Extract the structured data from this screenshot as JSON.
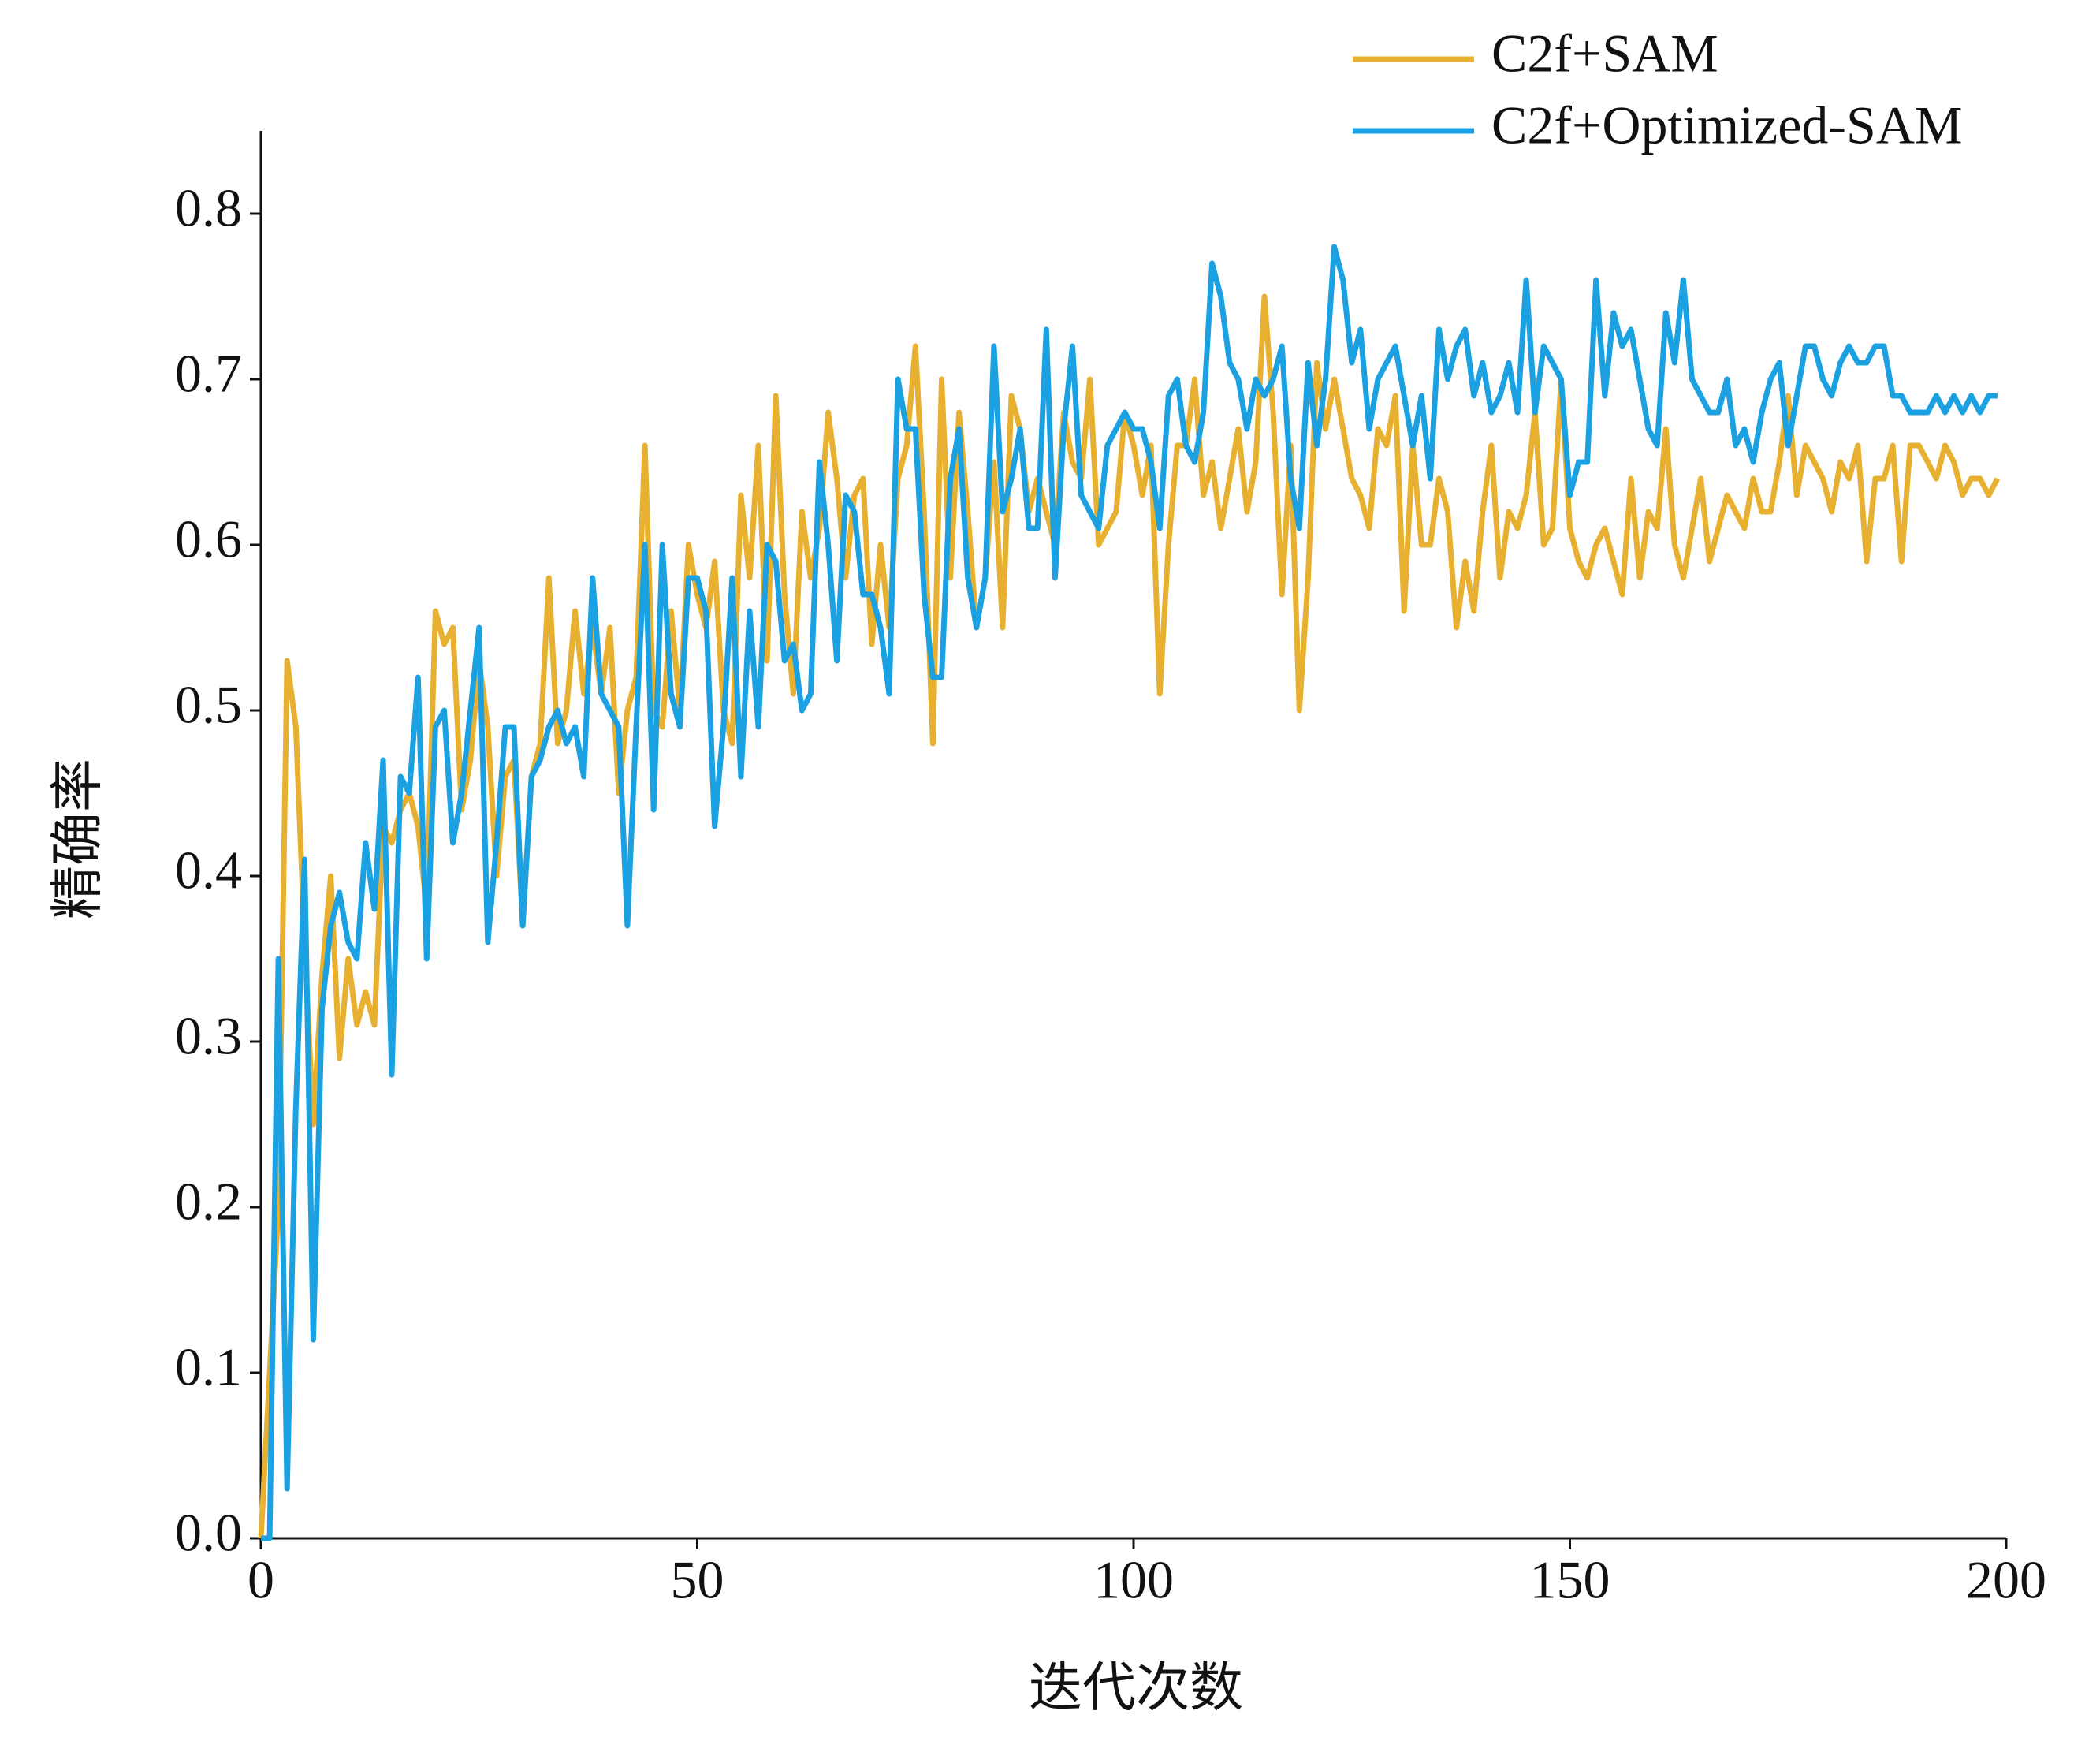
{
  "chart_data": {
    "type": "line",
    "x_label": "迭代次数",
    "y_label": "精确率",
    "x": [
      0,
      1,
      2,
      3,
      4,
      5,
      6,
      7,
      8,
      9,
      10,
      11,
      12,
      13,
      14,
      15,
      16,
      17,
      18,
      19,
      20,
      21,
      22,
      23,
      24,
      25,
      26,
      27,
      28,
      29,
      30,
      31,
      32,
      33,
      34,
      35,
      36,
      37,
      38,
      39,
      40,
      41,
      42,
      43,
      44,
      45,
      46,
      47,
      48,
      49,
      50,
      51,
      52,
      53,
      54,
      55,
      56,
      57,
      58,
      59,
      60,
      61,
      62,
      63,
      64,
      65,
      66,
      67,
      68,
      69,
      70,
      71,
      72,
      73,
      74,
      75,
      76,
      77,
      78,
      79,
      80,
      81,
      82,
      83,
      84,
      85,
      86,
      87,
      88,
      89,
      90,
      91,
      92,
      93,
      94,
      95,
      96,
      97,
      98,
      99,
      100,
      101,
      102,
      103,
      104,
      105,
      106,
      107,
      108,
      109,
      110,
      111,
      112,
      113,
      114,
      115,
      116,
      117,
      118,
      119,
      120,
      121,
      122,
      123,
      124,
      125,
      126,
      127,
      128,
      129,
      130,
      131,
      132,
      133,
      134,
      135,
      136,
      137,
      138,
      139,
      140,
      141,
      142,
      143,
      144,
      145,
      146,
      147,
      148,
      149,
      150,
      151,
      152,
      153,
      154,
      155,
      156,
      157,
      158,
      159,
      160,
      161,
      162,
      163,
      164,
      165,
      166,
      167,
      168,
      169,
      170,
      171,
      172,
      173,
      174,
      175,
      176,
      177,
      178,
      179,
      180,
      181,
      182,
      183,
      184,
      185,
      186,
      187,
      188,
      189,
      190,
      191,
      192,
      193,
      194,
      195,
      196,
      197,
      198,
      199
    ],
    "series": [
      {
        "name": "C2f+SAM",
        "color": "#e8b030",
        "values": [
          0.0,
          0.1,
          0.2,
          0.53,
          0.49,
          0.36,
          0.25,
          0.34,
          0.4,
          0.29,
          0.35,
          0.31,
          0.33,
          0.31,
          0.43,
          0.42,
          0.44,
          0.45,
          0.43,
          0.38,
          0.56,
          0.54,
          0.55,
          0.44,
          0.47,
          0.53,
          0.49,
          0.4,
          0.46,
          0.47,
          0.37,
          0.46,
          0.48,
          0.58,
          0.48,
          0.5,
          0.56,
          0.51,
          0.55,
          0.51,
          0.55,
          0.45,
          0.5,
          0.52,
          0.66,
          0.5,
          0.49,
          0.56,
          0.5,
          0.6,
          0.57,
          0.55,
          0.59,
          0.5,
          0.48,
          0.63,
          0.58,
          0.66,
          0.53,
          0.69,
          0.57,
          0.51,
          0.62,
          0.58,
          0.61,
          0.68,
          0.64,
          0.58,
          0.63,
          0.64,
          0.54,
          0.6,
          0.55,
          0.64,
          0.66,
          0.72,
          0.62,
          0.48,
          0.7,
          0.58,
          0.68,
          0.62,
          0.55,
          0.58,
          0.65,
          0.55,
          0.69,
          0.67,
          0.62,
          0.64,
          0.62,
          0.6,
          0.68,
          0.65,
          0.64,
          0.7,
          0.6,
          0.61,
          0.62,
          0.68,
          0.66,
          0.63,
          0.66,
          0.51,
          0.6,
          0.66,
          0.66,
          0.7,
          0.63,
          0.65,
          0.61,
          0.64,
          0.67,
          0.62,
          0.65,
          0.75,
          0.68,
          0.57,
          0.66,
          0.5,
          0.58,
          0.71,
          0.67,
          0.7,
          0.67,
          0.64,
          0.63,
          0.61,
          0.67,
          0.66,
          0.69,
          0.56,
          0.66,
          0.6,
          0.6,
          0.64,
          0.62,
          0.55,
          0.59,
          0.56,
          0.62,
          0.66,
          0.58,
          0.62,
          0.61,
          0.63,
          0.68,
          0.6,
          0.61,
          0.7,
          0.61,
          0.59,
          0.58,
          0.6,
          0.61,
          0.59,
          0.57,
          0.64,
          0.58,
          0.62,
          0.61,
          0.67,
          0.6,
          0.58,
          0.61,
          0.64,
          0.59,
          0.61,
          0.63,
          0.62,
          0.61,
          0.64,
          0.62,
          0.62,
          0.65,
          0.69,
          0.63,
          0.66,
          0.65,
          0.64,
          0.62,
          0.65,
          0.64,
          0.66,
          0.59,
          0.64,
          0.64,
          0.66,
          0.59,
          0.66,
          0.66,
          0.65,
          0.64,
          0.66,
          0.65,
          0.63,
          0.64,
          0.64,
          0.63,
          0.64
        ]
      },
      {
        "name": "C2f+Optimized-SAM",
        "color": "#1ba1e2",
        "values": [
          0.0,
          0.0,
          0.35,
          0.03,
          0.26,
          0.41,
          0.12,
          0.32,
          0.37,
          0.39,
          0.36,
          0.35,
          0.42,
          0.38,
          0.47,
          0.28,
          0.46,
          0.45,
          0.52,
          0.35,
          0.49,
          0.5,
          0.42,
          0.45,
          0.5,
          0.55,
          0.36,
          0.42,
          0.49,
          0.49,
          0.37,
          0.46,
          0.47,
          0.49,
          0.5,
          0.48,
          0.49,
          0.46,
          0.58,
          0.51,
          0.5,
          0.49,
          0.37,
          0.49,
          0.6,
          0.44,
          0.6,
          0.51,
          0.49,
          0.58,
          0.58,
          0.56,
          0.43,
          0.49,
          0.58,
          0.46,
          0.56,
          0.49,
          0.6,
          0.59,
          0.53,
          0.54,
          0.5,
          0.51,
          0.65,
          0.6,
          0.53,
          0.63,
          0.62,
          0.57,
          0.57,
          0.55,
          0.51,
          0.7,
          0.67,
          0.67,
          0.57,
          0.52,
          0.52,
          0.64,
          0.67,
          0.58,
          0.55,
          0.58,
          0.72,
          0.62,
          0.64,
          0.67,
          0.61,
          0.61,
          0.73,
          0.58,
          0.67,
          0.72,
          0.63,
          0.62,
          0.61,
          0.66,
          0.67,
          0.68,
          0.67,
          0.67,
          0.65,
          0.61,
          0.69,
          0.7,
          0.66,
          0.65,
          0.68,
          0.77,
          0.75,
          0.71,
          0.7,
          0.67,
          0.7,
          0.69,
          0.7,
          0.72,
          0.64,
          0.61,
          0.71,
          0.66,
          0.7,
          0.78,
          0.76,
          0.71,
          0.73,
          0.67,
          0.7,
          0.71,
          0.72,
          0.69,
          0.66,
          0.69,
          0.64,
          0.73,
          0.7,
          0.72,
          0.73,
          0.69,
          0.71,
          0.68,
          0.69,
          0.71,
          0.68,
          0.76,
          0.68,
          0.72,
          0.71,
          0.7,
          0.63,
          0.65,
          0.65,
          0.76,
          0.69,
          0.74,
          0.72,
          0.73,
          0.7,
          0.67,
          0.66,
          0.74,
          0.71,
          0.76,
          0.7,
          0.69,
          0.68,
          0.68,
          0.7,
          0.66,
          0.67,
          0.65,
          0.68,
          0.7,
          0.71,
          0.66,
          0.69,
          0.72,
          0.72,
          0.7,
          0.69,
          0.71,
          0.72,
          0.71,
          0.71,
          0.72,
          0.72,
          0.69,
          0.69,
          0.68,
          0.68,
          0.68,
          0.69,
          0.68,
          0.69,
          0.68,
          0.69,
          0.68,
          0.69,
          0.69
        ]
      }
    ],
    "xlim": [
      0,
      200
    ],
    "xticks": [
      0,
      50,
      100,
      150,
      200
    ],
    "ylim": [
      0,
      0.85
    ],
    "yticks": [
      {
        "value": 0,
        "label": "0.0"
      },
      0.1,
      0.2,
      0.3,
      0.4,
      0.5,
      0.6,
      0.7,
      0.8
    ],
    "grid": false,
    "legend": "top-right"
  }
}
